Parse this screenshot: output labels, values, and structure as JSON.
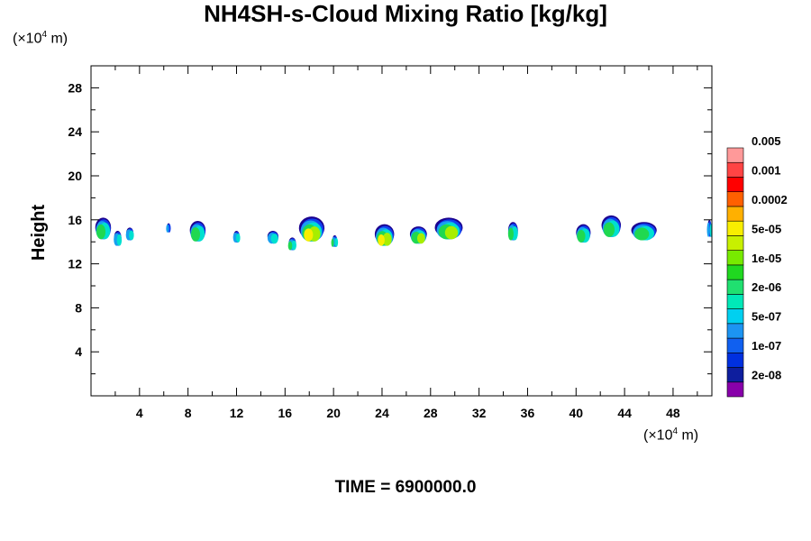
{
  "chart_data": {
    "type": "heatmap",
    "title": "NH4SH-s-Cloud Mixing Ratio [kg/kg]",
    "ylabel": "Height",
    "x_unit": "(×10",
    "x_unit_exp": "4",
    "x_unit_tail": " m)",
    "y_unit": "(×10",
    "y_unit_exp": "4",
    "y_unit_tail": " m)",
    "xlim": [
      0,
      51.2
    ],
    "ylim": [
      0,
      30
    ],
    "x_ticks": [
      "4",
      "8",
      "12",
      "16",
      "20",
      "24",
      "28",
      "32",
      "36",
      "40",
      "44",
      "48"
    ],
    "y_ticks": [
      "4",
      "8",
      "12",
      "16",
      "20",
      "24",
      "28"
    ],
    "grid": false,
    "legend_position": "right",
    "colorbar": {
      "colors": [
        "#8800aa",
        "#0e1e9e",
        "#0030e0",
        "#1060f0",
        "#1c94f2",
        "#00d0f0",
        "#00e8b8",
        "#20e070",
        "#20d820",
        "#78ea00",
        "#c8f000",
        "#f8ee00",
        "#ffb000",
        "#ff6000",
        "#ff0000",
        "#ff4444",
        "#ff9999"
      ],
      "labels": [
        "2e-08",
        "1e-07",
        "5e-07",
        "2e-06",
        "1e-05",
        "5e-05",
        "0.0002",
        "0.001",
        "0.005"
      ]
    },
    "clouds": [
      {
        "x": 1.0,
        "y": 15.0,
        "w": 1.3,
        "top": 16.2,
        "core": 0.4
      },
      {
        "x": 2.2,
        "y": 14.4,
        "w": 0.6,
        "top": 15.0,
        "core": 0.2
      },
      {
        "x": 3.2,
        "y": 14.9,
        "w": 0.6,
        "top": 15.3,
        "core": 0.2
      },
      {
        "x": 6.4,
        "y": 15.6,
        "w": 0.2,
        "top": 15.7,
        "core": 0.0
      },
      {
        "x": 8.8,
        "y": 14.8,
        "w": 1.3,
        "top": 15.9,
        "core": 0.3
      },
      {
        "x": 12.0,
        "y": 14.7,
        "w": 0.5,
        "top": 15.0,
        "core": 0.2
      },
      {
        "x": 15.0,
        "y": 14.6,
        "w": 0.9,
        "top": 15.0,
        "core": 0.2
      },
      {
        "x": 16.6,
        "y": 14.0,
        "w": 0.6,
        "top": 14.4,
        "core": 0.3
      },
      {
        "x": 18.2,
        "y": 14.8,
        "w": 2.1,
        "top": 16.3,
        "core": 0.7
      },
      {
        "x": 20.1,
        "y": 14.3,
        "w": 0.4,
        "top": 14.6,
        "core": 0.3
      },
      {
        "x": 24.2,
        "y": 14.4,
        "w": 1.6,
        "top": 15.6,
        "core": 0.8
      },
      {
        "x": 27.0,
        "y": 14.6,
        "w": 1.4,
        "top": 15.4,
        "core": 0.5
      },
      {
        "x": 29.5,
        "y": 15.0,
        "w": 2.3,
        "top": 16.2,
        "core": 0.5
      },
      {
        "x": 34.8,
        "y": 14.9,
        "w": 0.8,
        "top": 15.8,
        "core": 0.3
      },
      {
        "x": 40.6,
        "y": 14.7,
        "w": 1.2,
        "top": 15.6,
        "core": 0.3
      },
      {
        "x": 42.9,
        "y": 15.2,
        "w": 1.6,
        "top": 16.4,
        "core": 0.3
      },
      {
        "x": 45.6,
        "y": 14.9,
        "w": 2.1,
        "top": 15.8,
        "core": 0.3
      },
      {
        "x": 51.0,
        "y": 15.2,
        "w": 0.3,
        "top": 16.0,
        "core": 0.1
      }
    ]
  },
  "footer": {
    "time_label": "TIME = 6900000.0"
  }
}
